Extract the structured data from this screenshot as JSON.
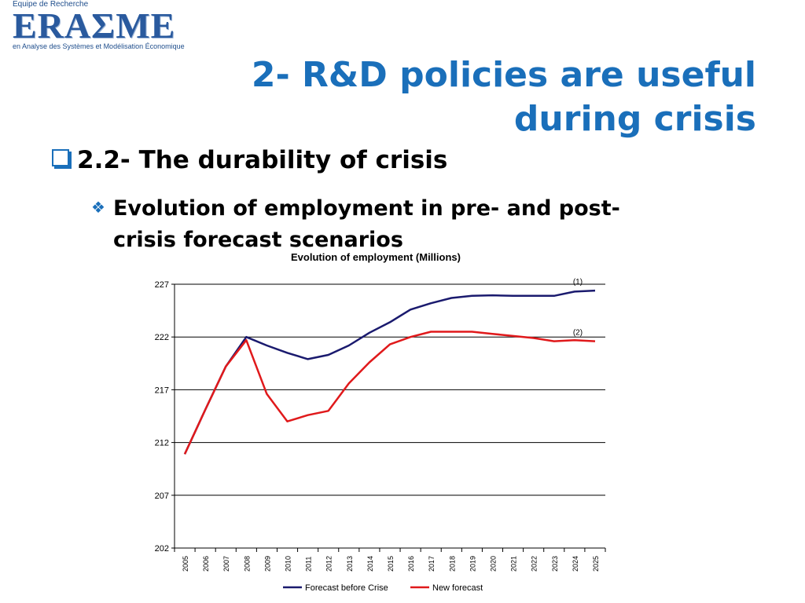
{
  "logo": {
    "top_text": "Equipe de Recherche",
    "word": "ERAΣME",
    "subtitle": "en Analyse des Systèmes et Modélisation Économique"
  },
  "title": {
    "line1": "2- R&D policies are useful",
    "line2": "during crisis"
  },
  "bullet1": {
    "text": "2.2- The durability of crisis"
  },
  "bullet2": {
    "line1": "Evolution of employment in pre- and post-",
    "line2": "crisis forecast scenarios"
  },
  "chart_data": {
    "type": "line",
    "title": "Evolution of employment (Millions)",
    "xlabel": "",
    "ylabel": "",
    "x": [
      "2005",
      "2006",
      "2007",
      "2008",
      "2009",
      "2010",
      "2011",
      "2012",
      "2013",
      "2014",
      "2015",
      "2016",
      "2017",
      "2018",
      "2019",
      "2020",
      "2021",
      "2022",
      "2023",
      "2024",
      "2025"
    ],
    "ylim": [
      202,
      227
    ],
    "yticks": [
      202,
      207,
      212,
      217,
      222,
      227
    ],
    "grid": true,
    "legend_placement": "bottom",
    "series": [
      {
        "name": "Forecast before Crise",
        "color": "#1a1a6e",
        "label": "(1)",
        "values": [
          210.9,
          215.1,
          219.2,
          222.0,
          221.2,
          220.5,
          219.9,
          220.3,
          221.2,
          222.4,
          223.4,
          224.6,
          225.2,
          225.7,
          225.9,
          225.95,
          225.9,
          225.9,
          225.9,
          226.3,
          226.4
        ]
      },
      {
        "name": "New forecast",
        "color": "#e0191b",
        "label": "(2)",
        "values": [
          210.9,
          215.1,
          219.2,
          221.7,
          216.6,
          214.0,
          214.6,
          215.0,
          217.6,
          219.6,
          221.3,
          222.0,
          222.5,
          222.5,
          222.5,
          222.3,
          222.1,
          221.9,
          221.6,
          221.7,
          221.6
        ]
      }
    ]
  }
}
